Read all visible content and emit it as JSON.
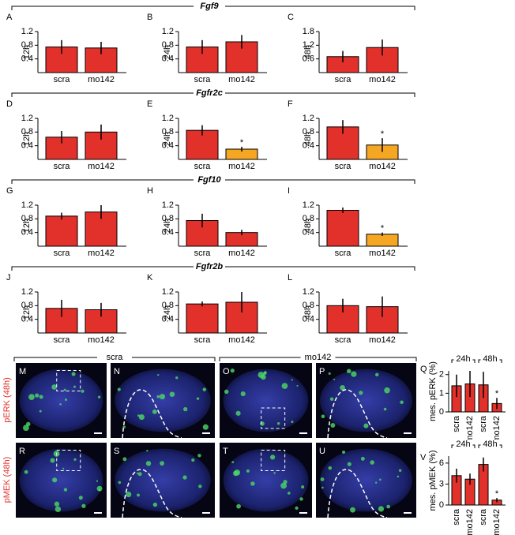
{
  "groups": [
    {
      "title": "Fgf9"
    },
    {
      "title": "Fgfr2c"
    },
    {
      "title": "Fgf10"
    },
    {
      "title": "Fgfr2b"
    }
  ],
  "chart_data": [
    {
      "type": "bar",
      "panel": "A",
      "ylabel": "12h",
      "categories": [
        "scra",
        "mo142"
      ],
      "values": [
        0.75,
        0.72
      ],
      "errors": [
        0.2,
        0.18
      ],
      "colors": [
        "#e2302b",
        "#e2302b"
      ],
      "significance": [
        null,
        null
      ],
      "ylim": [
        0,
        1.2
      ],
      "yticks": [
        0.4,
        0.8,
        1.2
      ]
    },
    {
      "type": "bar",
      "panel": "B",
      "ylabel": "24h",
      "categories": [
        "scra",
        "mo142"
      ],
      "values": [
        0.75,
        0.9
      ],
      "errors": [
        0.2,
        0.2
      ],
      "colors": [
        "#e2302b",
        "#e2302b"
      ],
      "significance": [
        null,
        null
      ],
      "ylim": [
        0,
        1.2
      ],
      "yticks": [
        0.4,
        0.8,
        1.2
      ]
    },
    {
      "type": "bar",
      "panel": "C",
      "ylabel": "48h",
      "categories": [
        "scra",
        "mo142"
      ],
      "values": [
        0.7,
        1.1
      ],
      "errors": [
        0.25,
        0.35
      ],
      "colors": [
        "#e2302b",
        "#e2302b"
      ],
      "significance": [
        null,
        null
      ],
      "ylim": [
        0,
        1.8
      ],
      "yticks": [
        0.6,
        1.2,
        1.8
      ]
    },
    {
      "type": "bar",
      "panel": "D",
      "ylabel": "12h",
      "categories": [
        "scra",
        "mo142"
      ],
      "values": [
        0.65,
        0.8
      ],
      "errors": [
        0.18,
        0.22
      ],
      "colors": [
        "#e2302b",
        "#e2302b"
      ],
      "significance": [
        null,
        null
      ],
      "ylim": [
        0,
        1.2
      ],
      "yticks": [
        0.4,
        0.8,
        1.2
      ]
    },
    {
      "type": "bar",
      "panel": "E",
      "ylabel": "24h",
      "categories": [
        "scra",
        "mo142"
      ],
      "values": [
        0.85,
        0.3
      ],
      "errors": [
        0.15,
        0.07
      ],
      "colors": [
        "#e2302b",
        "#f5a623"
      ],
      "significance": [
        null,
        "*"
      ],
      "ylim": [
        0,
        1.2
      ],
      "yticks": [
        0.4,
        0.8,
        1.2
      ]
    },
    {
      "type": "bar",
      "panel": "F",
      "ylabel": "48h",
      "categories": [
        "scra",
        "mo142"
      ],
      "values": [
        0.95,
        0.42
      ],
      "errors": [
        0.2,
        0.2
      ],
      "colors": [
        "#e2302b",
        "#f5a623"
      ],
      "significance": [
        null,
        "*"
      ],
      "ylim": [
        0,
        1.2
      ],
      "yticks": [
        0.4,
        0.8,
        1.2
      ]
    },
    {
      "type": "bar",
      "panel": "G",
      "ylabel": "12h",
      "categories": [
        "scra",
        "mo142"
      ],
      "values": [
        0.88,
        1.0
      ],
      "errors": [
        0.1,
        0.2
      ],
      "colors": [
        "#e2302b",
        "#e2302b"
      ],
      "significance": [
        null,
        null
      ],
      "ylim": [
        0,
        1.2
      ],
      "yticks": [
        0.4,
        0.8,
        1.2
      ]
    },
    {
      "type": "bar",
      "panel": "H",
      "ylabel": "24h",
      "categories": [
        "scra",
        "mo142"
      ],
      "values": [
        0.75,
        0.4
      ],
      "errors": [
        0.2,
        0.08
      ],
      "colors": [
        "#e2302b",
        "#e2302b"
      ],
      "significance": [
        null,
        null
      ],
      "ylim": [
        0,
        1.2
      ],
      "yticks": [
        0.4,
        0.8,
        1.2
      ]
    },
    {
      "type": "bar",
      "panel": "I",
      "ylabel": "48h",
      "categories": [
        "scra",
        "mo142"
      ],
      "values": [
        1.05,
        0.35
      ],
      "errors": [
        0.08,
        0.05
      ],
      "colors": [
        "#e2302b",
        "#f5a623"
      ],
      "significance": [
        null,
        "*"
      ],
      "ylim": [
        0,
        1.2
      ],
      "yticks": [
        0.4,
        0.8,
        1.2
      ]
    },
    {
      "type": "bar",
      "panel": "J",
      "ylabel": "12h",
      "categories": [
        "scra",
        "mo142"
      ],
      "values": [
        0.72,
        0.68
      ],
      "errors": [
        0.25,
        0.2
      ],
      "colors": [
        "#e2302b",
        "#e2302b"
      ],
      "significance": [
        null,
        null
      ],
      "ylim": [
        0,
        1.2
      ],
      "yticks": [
        0.4,
        0.8,
        1.2
      ]
    },
    {
      "type": "bar",
      "panel": "K",
      "ylabel": "24h",
      "categories": [
        "scra",
        "mo142"
      ],
      "values": [
        0.85,
        0.9
      ],
      "errors": [
        0.07,
        0.3
      ],
      "colors": [
        "#e2302b",
        "#e2302b"
      ],
      "significance": [
        null,
        null
      ],
      "ylim": [
        0,
        1.2
      ],
      "yticks": [
        0.4,
        0.8,
        1.2
      ]
    },
    {
      "type": "bar",
      "panel": "L",
      "ylabel": "48h",
      "categories": [
        "scra",
        "mo142"
      ],
      "values": [
        0.8,
        0.77
      ],
      "errors": [
        0.2,
        0.3
      ],
      "colors": [
        "#e2302b",
        "#e2302b"
      ],
      "significance": [
        null,
        null
      ],
      "ylim": [
        0,
        1.2
      ],
      "yticks": [
        0.4,
        0.8,
        1.2
      ]
    },
    {
      "type": "bar",
      "panel": "Q",
      "ylabel": "mes. pERK (%)",
      "time_groups": [
        "24h",
        "48h"
      ],
      "categories": [
        "scra",
        "mo142",
        "scra",
        "mo142"
      ],
      "values": [
        1.4,
        1.5,
        1.45,
        0.45
      ],
      "errors": [
        0.6,
        0.7,
        0.7,
        0.3
      ],
      "colors": [
        "#e2302b",
        "#e2302b",
        "#e2302b",
        "#e2302b"
      ],
      "significance": [
        null,
        null,
        null,
        "*"
      ],
      "ylim": [
        0,
        2.2
      ],
      "yticks": [
        0,
        1,
        2
      ]
    },
    {
      "type": "bar",
      "panel": "V",
      "ylabel": "mes. pMEK (%)",
      "time_groups": [
        "24h",
        "48h"
      ],
      "categories": [
        "scra",
        "mo142",
        "scra",
        "mo142"
      ],
      "values": [
        4.2,
        3.7,
        5.8,
        0.7
      ],
      "errors": [
        1.0,
        0.8,
        1.0,
        0.3
      ],
      "colors": [
        "#e2302b",
        "#e2302b",
        "#e2302b",
        "#e2302b"
      ],
      "significance": [
        null,
        null,
        null,
        "*"
      ],
      "ylim": [
        0,
        7
      ],
      "yticks": [
        0,
        3,
        6
      ]
    }
  ],
  "image_section": {
    "headers": [
      "scra",
      "mo142"
    ],
    "row_labels": [
      "pERK (48h)",
      "pMEK (48h)"
    ],
    "panels": [
      "M",
      "N",
      "O",
      "P",
      "R",
      "S",
      "T",
      "U"
    ]
  }
}
